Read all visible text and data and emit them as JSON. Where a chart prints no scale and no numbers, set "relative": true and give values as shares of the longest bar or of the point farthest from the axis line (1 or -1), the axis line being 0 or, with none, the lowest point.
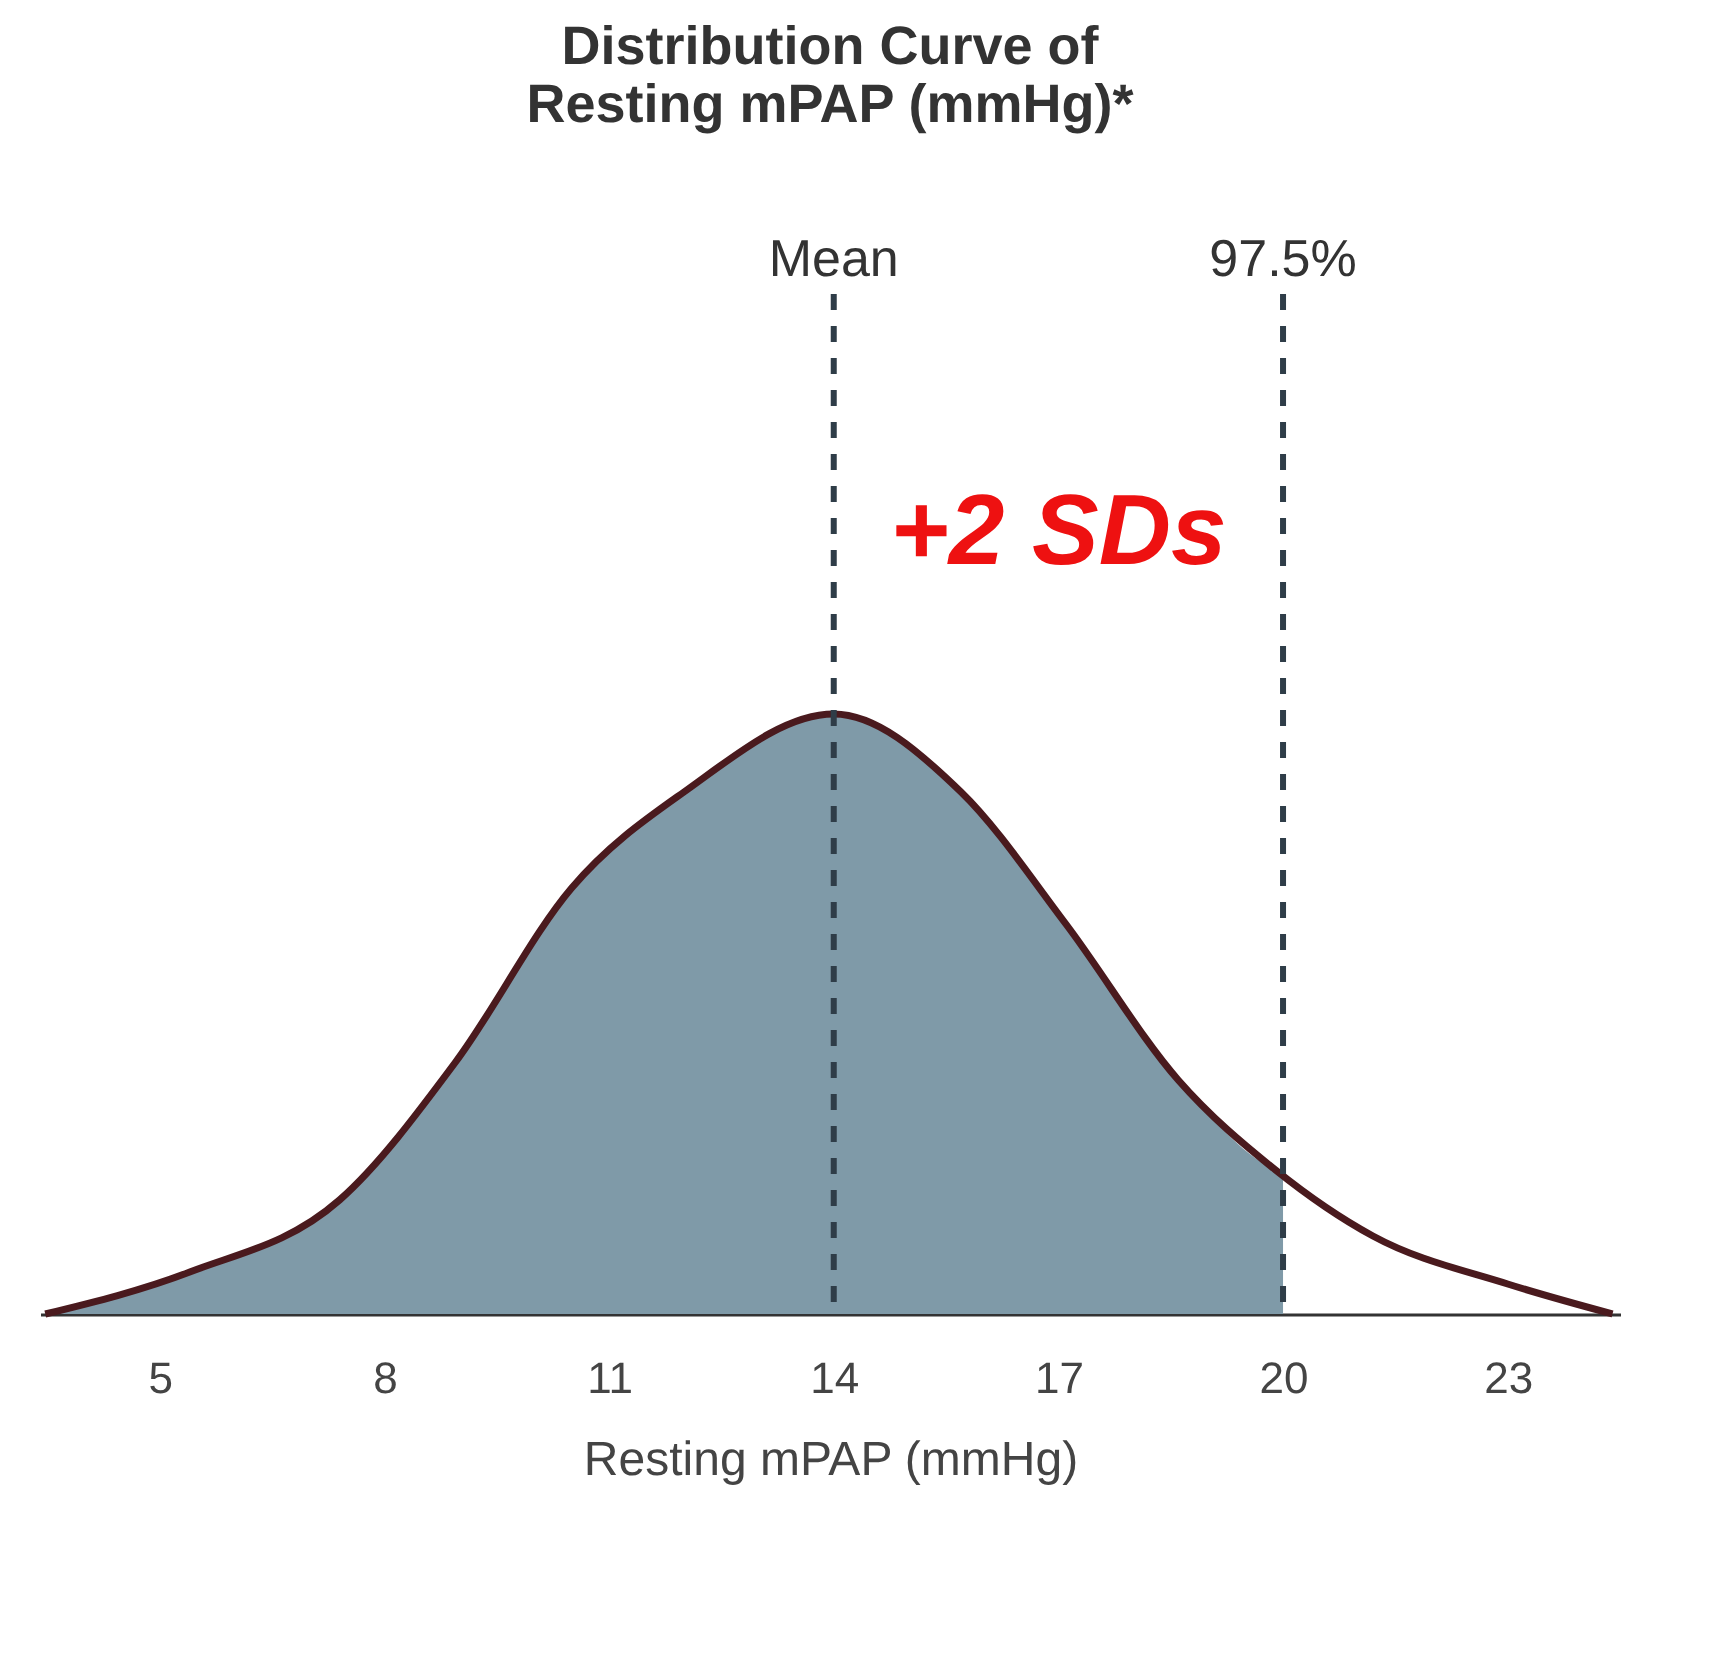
{
  "chart_data": {
    "type": "line",
    "title": "Distribution Curve of\nResting mPAP (mmHg)*",
    "xlabel": "Resting mPAP (mmHg)",
    "relative": true,
    "xlim": [
      3.4,
      24.5
    ],
    "xticks": [
      5,
      8,
      11,
      14,
      17,
      20,
      23
    ],
    "grid": false,
    "series": [
      {
        "type": "area",
        "color": "#7f9aa8",
        "x": [
          3.47,
          5.4,
          7.4,
          8.95,
          10.5,
          12.0,
          14.0,
          15.7,
          17.1,
          18.6,
          19.9,
          20.0
        ],
        "values": [
          0,
          0.07,
          0.19,
          0.42,
          0.71,
          0.87,
          1.0,
          0.87,
          0.65,
          0.39,
          0.24,
          0.235
        ]
      },
      {
        "color": "#4a1a1e",
        "x": [
          3.47,
          5.4,
          7.4,
          8.95,
          10.5,
          12.0,
          14.0,
          15.7,
          17.1,
          18.6,
          19.9,
          21.2,
          23.0,
          24.4
        ],
        "values": [
          0,
          0.07,
          0.19,
          0.42,
          0.71,
          0.87,
          1.0,
          0.87,
          0.65,
          0.39,
          0.24,
          0.13,
          0.05,
          0
        ]
      }
    ],
    "ref_lines": [
      {
        "axis": "x",
        "value": 14,
        "label": "Mean",
        "color": "#2f3d48",
        "line_style": "dashed"
      },
      {
        "axis": "x",
        "value": 20,
        "color": "#2f3d48",
        "line_style": "dashed"
      }
    ],
    "annotations": [
      "+2 SDs",
      "97.5%"
    ]
  }
}
